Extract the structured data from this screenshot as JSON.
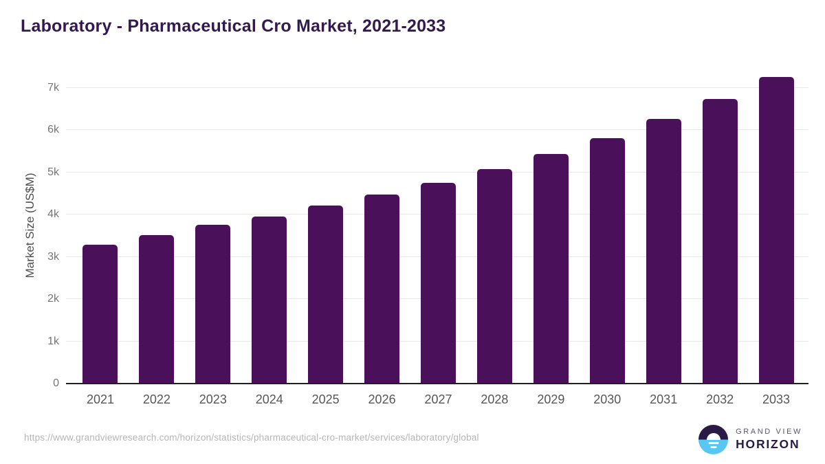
{
  "chart_data": {
    "type": "bar",
    "title": "Laboratory - Pharmaceutical Cro Market, 2021-2033",
    "xlabel": "",
    "ylabel": "Market Size (US$M)",
    "categories": [
      "2021",
      "2022",
      "2023",
      "2024",
      "2025",
      "2026",
      "2027",
      "2028",
      "2029",
      "2030",
      "2031",
      "2032",
      "2033"
    ],
    "values": [
      3290,
      3510,
      3750,
      3955,
      4210,
      4465,
      4755,
      5070,
      5435,
      5810,
      6255,
      6730,
      7260
    ],
    "ylim": [
      0,
      7460
    ],
    "yticks": [
      0,
      1000,
      2000,
      3000,
      4000,
      5000,
      6000,
      7000
    ],
    "ytick_labels": [
      "0",
      "1k",
      "2k",
      "3k",
      "4k",
      "5k",
      "6k",
      "7k"
    ],
    "grid": "horizontal",
    "legend": "none",
    "bar_color": "#4a1059",
    "axis_line_color": "#212121"
  },
  "footer": {
    "source_url": "https://www.grandviewresearch.com/horizon/statistics/pharmaceutical-cro-market/services/laboratory/global",
    "logo": {
      "line1": "GRAND VIEW",
      "line2": "HORIZON"
    }
  },
  "colors": {
    "title": "#33194f",
    "bar": "#4a1059",
    "gridline": "#e8e8e8",
    "x_tick": "#565656",
    "y_tick": "#757575",
    "url_text": "#b5b5b5",
    "logo_dark": "#2b1a46",
    "logo_blue": "#58c7f3"
  }
}
